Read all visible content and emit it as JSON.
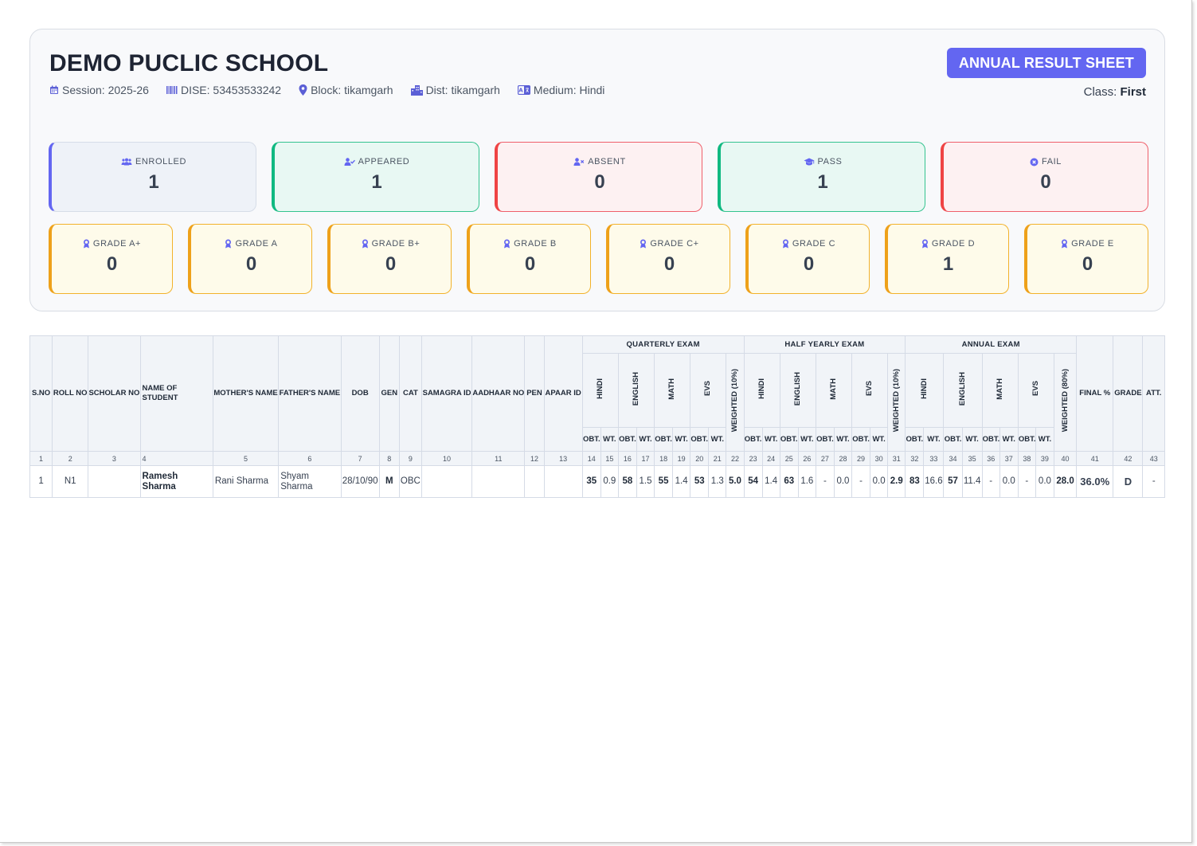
{
  "school": {
    "name": "DEMO PUCLIC SCHOOL",
    "session": "Session: 2025-26",
    "dise": "DISE: 53453533242",
    "block": "Block: tikamgarh",
    "dist": "Dist: tikamgarh",
    "medium": "Medium: Hindi"
  },
  "badge": "ANNUAL RESULT SHEET",
  "class_label": "Class:",
  "class_value": "First",
  "stats": [
    {
      "label": "ENROLLED",
      "value": "1",
      "icon": "users-icon",
      "color": "#6366f1"
    },
    {
      "label": "APPEARED",
      "value": "1",
      "icon": "user-check-icon",
      "color": "#10b981"
    },
    {
      "label": "ABSENT",
      "value": "0",
      "icon": "user-x-icon",
      "color": "#ef4444"
    },
    {
      "label": "PASS",
      "value": "1",
      "icon": "graduation-cap-icon",
      "color": "#10b981"
    },
    {
      "label": "FAIL",
      "value": "0",
      "icon": "x-circle-icon",
      "color": "#ef4444"
    }
  ],
  "grades": [
    {
      "label": "GRADE A+",
      "value": "0"
    },
    {
      "label": "GRADE A",
      "value": "0"
    },
    {
      "label": "GRADE B+",
      "value": "0"
    },
    {
      "label": "GRADE B",
      "value": "0"
    },
    {
      "label": "GRADE C+",
      "value": "0"
    },
    {
      "label": "GRADE C",
      "value": "0"
    },
    {
      "label": "GRADE D",
      "value": "1"
    },
    {
      "label": "GRADE E",
      "value": "0"
    }
  ],
  "table": {
    "headers": {
      "sno": "S.NO",
      "roll": "ROLL NO",
      "scholar": "SCHOLAR NO",
      "name": "NAME OF STUDENT",
      "mother": "MOTHER'S NAME",
      "father": "FATHER'S NAME",
      "dob": "DOB",
      "gen": "GEN",
      "cat": "CAT",
      "samagra": "SAMAGRA ID",
      "aadhaar": "AADHAAR NO",
      "pen": "PEN",
      "apaar": "APAAR ID",
      "final": "FINAL %",
      "grade": "GRADE",
      "att": "ATT."
    },
    "exam_groups": [
      "QUARTERLY EXAM",
      "HALF YEARLY EXAM",
      "ANNUAL EXAM"
    ],
    "subjects": [
      "HINDI",
      "ENGLISH",
      "MATH",
      "EVS"
    ],
    "weighted": [
      "WEIGHTED (10%)",
      "WEIGHTED (10%)",
      "WEIGHTED (80%)"
    ],
    "obt": "OBT.",
    "wt": "WT.",
    "col_numbers": [
      "1",
      "2",
      "3",
      "4",
      "5",
      "6",
      "7",
      "8",
      "9",
      "10",
      "11",
      "12",
      "13",
      "14",
      "15",
      "16",
      "17",
      "18",
      "19",
      "20",
      "21",
      "22",
      "23",
      "24",
      "25",
      "26",
      "27",
      "28",
      "29",
      "30",
      "31",
      "32",
      "33",
      "34",
      "35",
      "36",
      "37",
      "38",
      "39",
      "40",
      "41",
      "42",
      "43"
    ],
    "rows": [
      {
        "sno": "1",
        "roll": "N1",
        "scholar": "",
        "name": "Ramesh Sharma",
        "mother": "Rani Sharma",
        "father": "Shyam Sharma",
        "dob": "28/10/90",
        "gen": "M",
        "cat": "OBC",
        "samagra": "",
        "aadhaar": "",
        "pen": "",
        "apaar": "",
        "q": [
          "35",
          "0.9",
          "58",
          "1.5",
          "55",
          "1.4",
          "53",
          "1.3"
        ],
        "q_w": "5.0",
        "h": [
          "54",
          "1.4",
          "63",
          "1.6",
          "-",
          "0.0",
          "-",
          "0.0"
        ],
        "h_w": "2.9",
        "a": [
          "83",
          "16.6",
          "57",
          "11.4",
          "-",
          "0.0",
          "-",
          "0.0"
        ],
        "a_w": "28.0",
        "final": "36.0%",
        "grade": "D",
        "att": "-"
      }
    ]
  }
}
